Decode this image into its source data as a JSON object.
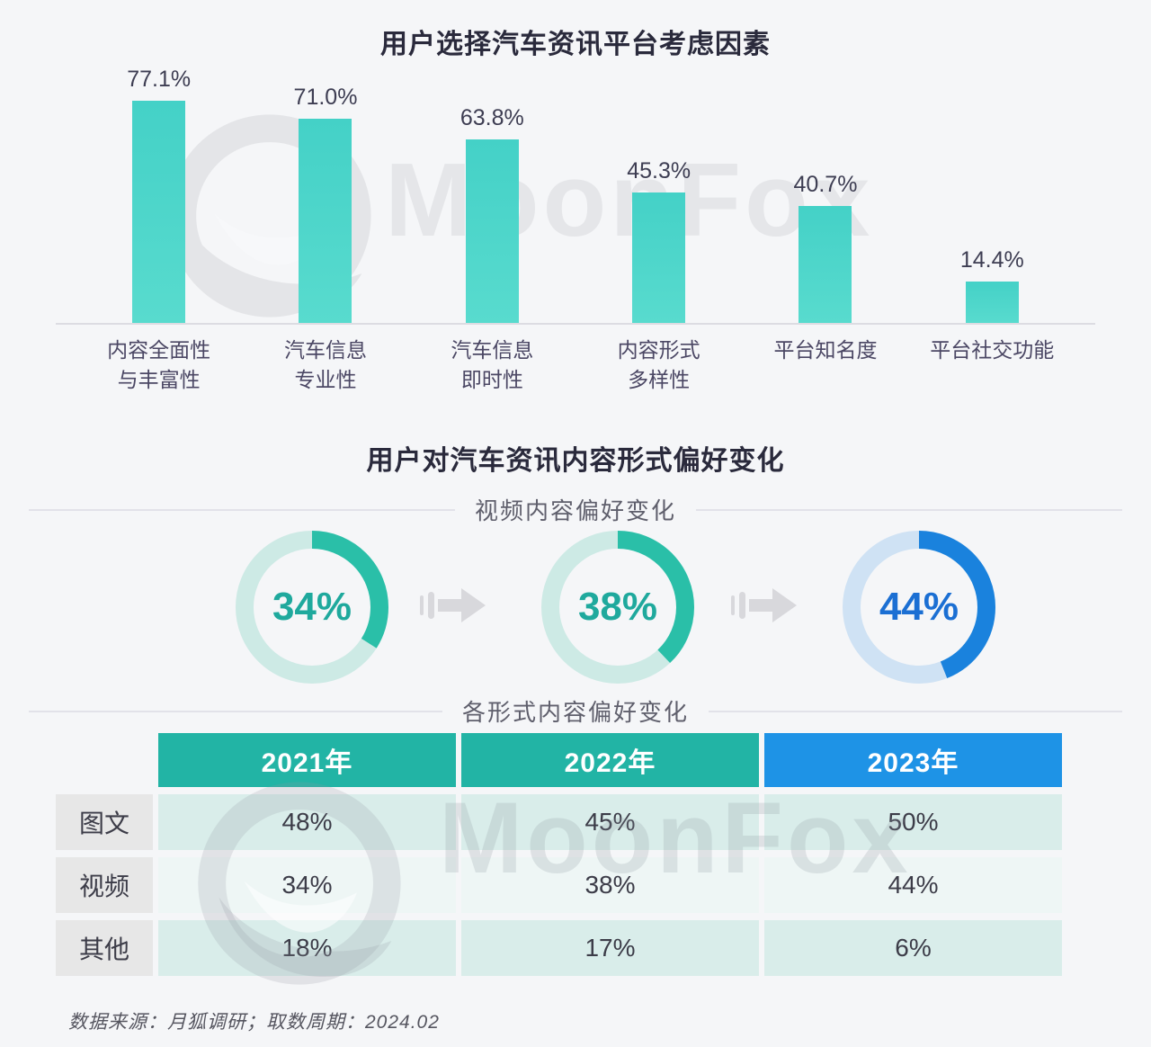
{
  "watermark": {
    "brand": "MoonFox"
  },
  "sections": {
    "preference_title": "用户对汽车资讯内容形式偏好变化"
  },
  "footer": {
    "source_text": "数据来源：月狐调研；取数周期：2024.02"
  },
  "chart_data": [
    {
      "type": "bar",
      "title": "用户选择汽车资讯平台考虑因素",
      "categories": [
        [
          "内容全面性",
          "与丰富性"
        ],
        [
          "汽车信息",
          "专业性"
        ],
        [
          "汽车信息",
          "即时性"
        ],
        [
          "内容形式",
          "多样性"
        ],
        [
          "平台知名度"
        ],
        [
          "平台社交功能"
        ]
      ],
      "values": [
        77.1,
        71.0,
        63.8,
        45.3,
        40.7,
        14.4
      ],
      "value_labels": [
        "77.1%",
        "71.0%",
        "63.8%",
        "45.3%",
        "40.7%",
        "14.4%"
      ],
      "ylim": [
        0,
        100
      ],
      "grid": false,
      "legend": "none",
      "bar_color": "#4bd4ca"
    },
    {
      "type": "pie",
      "subtype": "donut-progression",
      "title": "视频内容偏好变化",
      "series": [
        {
          "label": "34%",
          "value": 34,
          "arc_color": "#2abfa8",
          "track_color": "#cdeae5",
          "text_color": "#1fa99d"
        },
        {
          "label": "38%",
          "value": 38,
          "arc_color": "#2abfa8",
          "track_color": "#cdeae5",
          "text_color": "#1fa99d"
        },
        {
          "label": "44%",
          "value": 44,
          "arc_color": "#1a82dd",
          "track_color": "#cfe2f4",
          "text_color": "#1b6fd3"
        }
      ]
    },
    {
      "type": "table",
      "title": "各形式内容偏好变化",
      "columns": [
        "2021年",
        "2022年",
        "2023年"
      ],
      "header_colors": [
        "#22b4a5",
        "#22b4a5",
        "#1e93e6"
      ],
      "rows": [
        {
          "label": "图文",
          "values": [
            "48%",
            "45%",
            "50%"
          ]
        },
        {
          "label": "视频",
          "values": [
            "34%",
            "38%",
            "44%"
          ]
        },
        {
          "label": "其他",
          "values": [
            "18%",
            "17%",
            "6%"
          ]
        }
      ],
      "row_colors": [
        "#d9edea",
        "#eef6f5",
        "#d9edea"
      ],
      "label_cell_color": "#e7e7e7"
    }
  ]
}
